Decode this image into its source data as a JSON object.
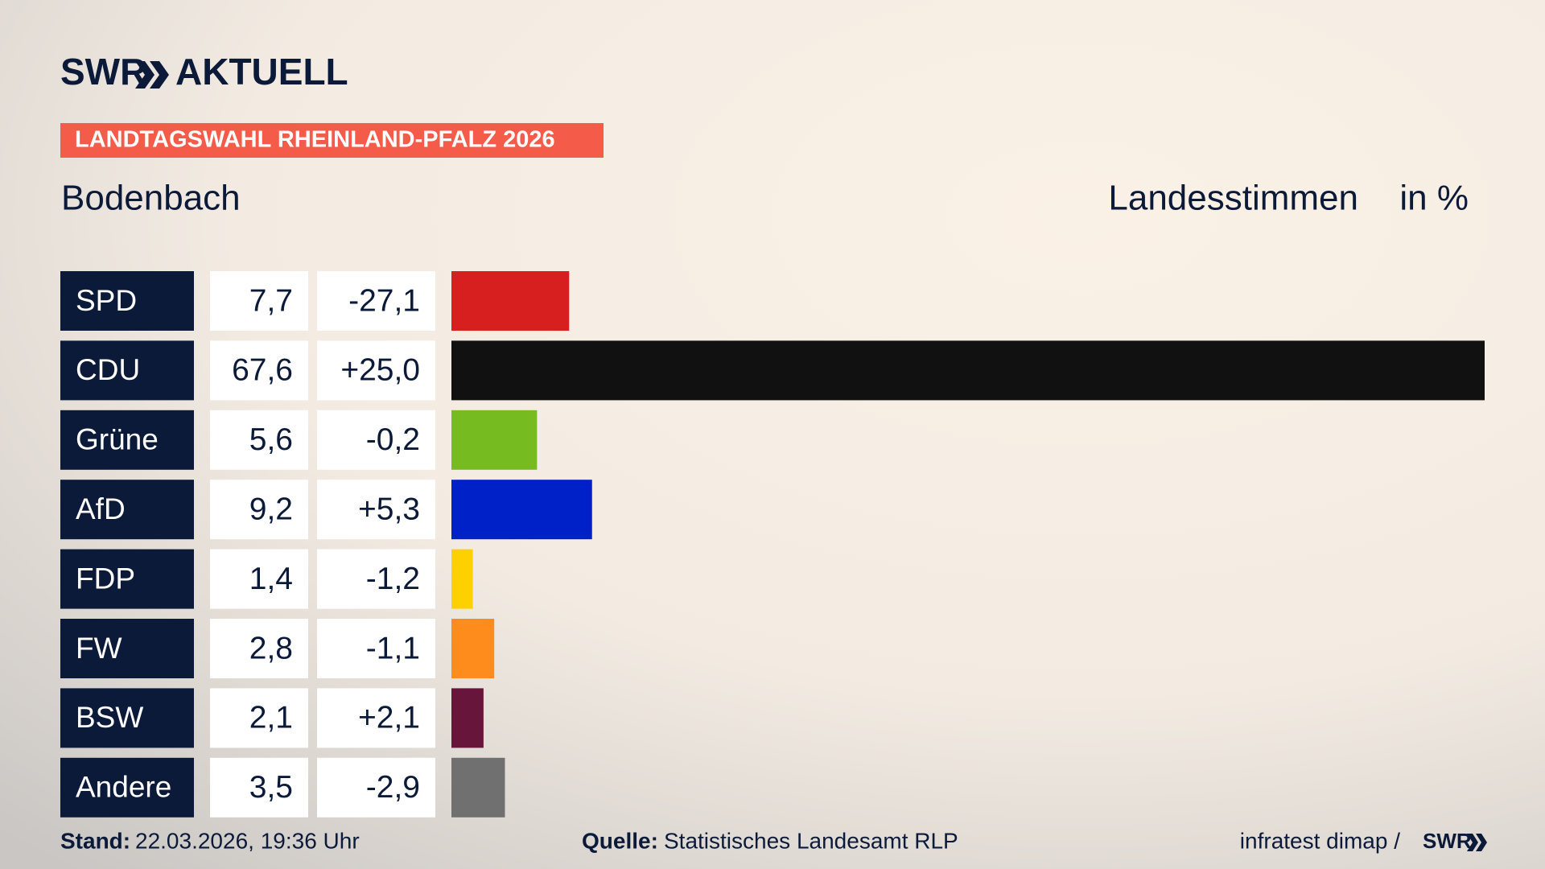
{
  "chart_data": {
    "type": "bar",
    "brand": "SWR",
    "brand_section": "AKTUELL",
    "banner": "LANDTAGSWAHL RHEINLAND-PFALZ 2026",
    "title": "Bodenbach",
    "measure": "Landesstimmen",
    "unit": "in %",
    "categories": [
      "SPD",
      "CDU",
      "Grüne",
      "AfD",
      "FDP",
      "FW",
      "BSW",
      "Andere"
    ],
    "values": [
      7.7,
      67.6,
      5.6,
      9.2,
      1.4,
      2.8,
      2.1,
      3.5
    ],
    "value_labels": [
      "7,7",
      "67,6",
      "5,6",
      "9,2",
      "1,4",
      "2,8",
      "2,1",
      "3,5"
    ],
    "changes": [
      -27.1,
      25.0,
      -0.2,
      5.3,
      -1.2,
      -1.1,
      2.1,
      -2.9
    ],
    "change_labels": [
      "-27,1",
      "+25,0",
      "-0,2",
      "+5,3",
      "-1,2",
      "-1,1",
      "+2,1",
      "-2,9"
    ],
    "colors": [
      "#d81f20",
      "#111111",
      "#76bc21",
      "#0021c7",
      "#fdd100",
      "#fd8c1c",
      "#67153a",
      "#707070"
    ],
    "footer": {
      "date_label": "Stand:",
      "date": "22.03.2026, 19:36 Uhr",
      "source_label": "Quelle:",
      "source": "Statistisches Landesamt RLP",
      "credit": "infratest dimap /",
      "credit_brand": "SWR"
    }
  }
}
